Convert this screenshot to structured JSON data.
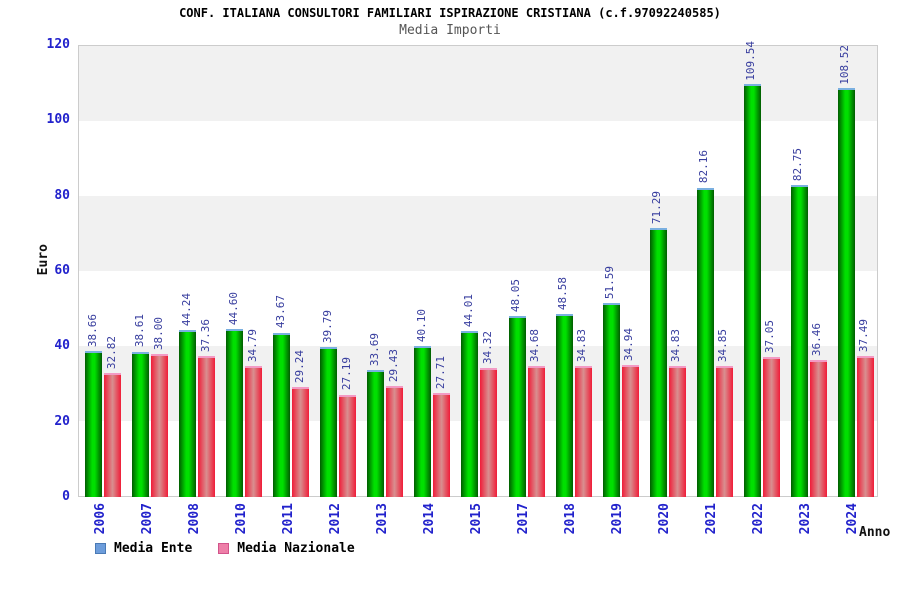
{
  "header": {
    "title": "CONF. ITALIANA CONSULTORI FAMILIARI ISPIRAZIONE CRISTIANA (c.f.97092240585)",
    "subtitle": "Media Importi"
  },
  "axes": {
    "y_label": "Euro",
    "x_label": "Anno"
  },
  "legend": {
    "items": [
      {
        "label": "Media Ente",
        "swatch_fill": "#6d9ddb",
        "swatch_border": "#4a7ab5"
      },
      {
        "label": "Media Nazionale",
        "swatch_fill": "#ee7fa8",
        "swatch_border": "#d2548b"
      }
    ]
  },
  "colors": {
    "green_bar_edge": "#015c01",
    "green_bar_center": "#00e000",
    "green_bar_cap": "#7ab0e0",
    "red_bar_edge": "#f01c38",
    "red_bar_center": "#d89090",
    "red_bar_cap": "#f39ac4",
    "tick_blue": "#2222cc",
    "value_label_blue": "#373d9e",
    "band_gray": "#f1f1f1",
    "plot_border": "#cccccc",
    "subtitle_gray": "#555555"
  },
  "chart_data": {
    "type": "bar",
    "title": "CONF. ITALIANA CONSULTORI FAMILIARI ISPIRAZIONE CRISTIANA (c.f.97092240585)",
    "subtitle": "Media Importi",
    "xlabel": "Anno",
    "ylabel": "Euro",
    "ylim": [
      0,
      120
    ],
    "yticks": [
      0,
      20,
      40,
      60,
      80,
      100,
      120
    ],
    "grid": "alternating-horizontal-bands",
    "legend_position": "bottom-left",
    "value_label_decimals": 2,
    "categories": [
      "2006",
      "2007",
      "2008",
      "2010",
      "2011",
      "2012",
      "2013",
      "2014",
      "2015",
      "2017",
      "2018",
      "2019",
      "2020",
      "2021",
      "2022",
      "2023",
      "2024"
    ],
    "series": [
      {
        "name": "Media Ente",
        "values": [
          38.66,
          38.61,
          44.24,
          44.6,
          43.67,
          39.79,
          33.69,
          40.1,
          44.01,
          48.05,
          48.58,
          51.59,
          71.29,
          82.16,
          109.54,
          82.75,
          108.52
        ]
      },
      {
        "name": "Media Nazionale",
        "values": [
          32.82,
          38.0,
          37.36,
          34.79,
          29.24,
          27.19,
          29.43,
          27.71,
          34.32,
          34.68,
          34.83,
          34.94,
          34.83,
          34.85,
          37.05,
          36.46,
          37.49
        ]
      }
    ]
  }
}
